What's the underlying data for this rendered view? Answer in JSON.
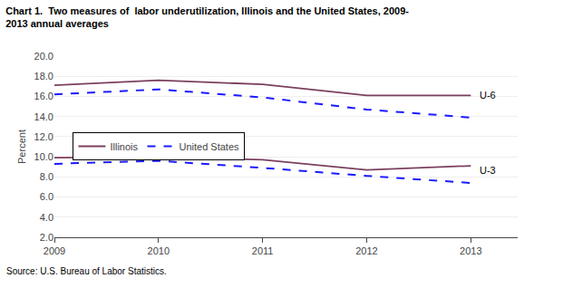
{
  "chart_data": {
    "type": "line",
    "title": "Chart 1.  Two measures of  labor underutilization, Illinois and the United States, 2009-\n2013 annual averages",
    "ylabel": "Percent",
    "source": "Source: U.S. Bureau of Labor Statistics.",
    "x": [
      2009,
      2010,
      2011,
      2012,
      2013
    ],
    "series": [
      {
        "name": "Illinois",
        "color": "#7B3F5E",
        "line_style": "solid",
        "values": [
          17.1,
          17.6,
          17.2,
          16.1,
          16.1
        ]
      },
      {
        "name": "United States",
        "color": "#1a1aff",
        "line_style": "dashed",
        "values": [
          16.2,
          16.7,
          15.9,
          14.7,
          13.9
        ]
      },
      {
        "color": "#7B3F5E",
        "line_style": "solid",
        "values": [
          9.9,
          10.0,
          9.7,
          8.7,
          9.1
        ]
      },
      {
        "color": "#1a1aff",
        "line_style": "dashed",
        "values": [
          9.3,
          9.6,
          8.9,
          8.1,
          7.4
        ]
      }
    ],
    "annotations": [
      {
        "text": "U-6",
        "x": 2013.07,
        "y": 16.1
      },
      {
        "text": "U-3",
        "x": 2013.07,
        "y": 8.7
      }
    ],
    "xlim": [
      2009,
      2013.45
    ],
    "xticks": [
      2009,
      2010,
      2011,
      2012,
      2013
    ],
    "ylim": [
      2.0,
      20.0
    ],
    "yticks": [
      {
        "value": 2.0,
        "label": "2.0"
      },
      {
        "value": 4.0,
        "label": "4.0"
      },
      {
        "value": 6.0,
        "label": "6.0"
      },
      {
        "value": 8.0,
        "label": "8.0"
      },
      {
        "value": 10.0,
        "label": "10.0"
      },
      {
        "value": 12.0,
        "label": "12.0"
      },
      {
        "value": 14.0,
        "label": "14.0"
      },
      {
        "value": 16.0,
        "label": "16.0"
      },
      {
        "value": 18.0,
        "label": "18.0"
      },
      {
        "value": 20.0,
        "label": "20.0"
      }
    ],
    "grid": "y",
    "legend": "center left"
  }
}
